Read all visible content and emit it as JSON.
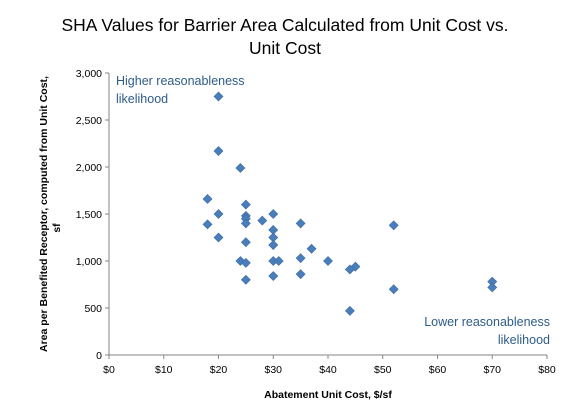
{
  "chart_data": {
    "type": "scatter",
    "title_lines": [
      "SHA Values for Barrier Area Calculated from Unit Cost vs.",
      "Unit Cost"
    ],
    "xlabel": "Abatement Unit Cost, $/sf",
    "ylabel_lines": [
      "Area per Benefited Receptor, computed from Unit Cost,",
      "sf"
    ],
    "xlim": [
      0,
      80
    ],
    "ylim": [
      0,
      3000
    ],
    "x_tick_labels": [
      "$0",
      "$10",
      "$20",
      "$30",
      "$40",
      "$50",
      "$60",
      "$70",
      "$80"
    ],
    "y_tick_labels": [
      "0",
      "500",
      "1,000",
      "1,500",
      "2,000",
      "2,500",
      "3,000"
    ],
    "grid": false,
    "marker": "diamond",
    "marker_color": "#4a7ebb",
    "annotations": {
      "high": [
        "Higher reasonableness",
        "likelihood"
      ],
      "low": [
        "Lower reasonableness",
        "likelihood"
      ]
    },
    "points": [
      {
        "x": 20,
        "y": 2750
      },
      {
        "x": 20,
        "y": 2170
      },
      {
        "x": 24,
        "y": 1990
      },
      {
        "x": 18,
        "y": 1660
      },
      {
        "x": 25,
        "y": 1600
      },
      {
        "x": 20,
        "y": 1500
      },
      {
        "x": 25,
        "y": 1480
      },
      {
        "x": 30,
        "y": 1500
      },
      {
        "x": 25,
        "y": 1450
      },
      {
        "x": 28,
        "y": 1430
      },
      {
        "x": 25,
        "y": 1400
      },
      {
        "x": 35,
        "y": 1400
      },
      {
        "x": 18,
        "y": 1390
      },
      {
        "x": 52,
        "y": 1380
      },
      {
        "x": 30,
        "y": 1330
      },
      {
        "x": 20,
        "y": 1250
      },
      {
        "x": 30,
        "y": 1250
      },
      {
        "x": 25,
        "y": 1200
      },
      {
        "x": 30,
        "y": 1170
      },
      {
        "x": 37,
        "y": 1130
      },
      {
        "x": 35,
        "y": 1030
      },
      {
        "x": 24,
        "y": 1000
      },
      {
        "x": 25,
        "y": 980
      },
      {
        "x": 30,
        "y": 1000
      },
      {
        "x": 31,
        "y": 1000
      },
      {
        "x": 40,
        "y": 1000
      },
      {
        "x": 45,
        "y": 940
      },
      {
        "x": 44,
        "y": 910
      },
      {
        "x": 35,
        "y": 860
      },
      {
        "x": 25,
        "y": 800
      },
      {
        "x": 30,
        "y": 840
      },
      {
        "x": 70,
        "y": 780
      },
      {
        "x": 70,
        "y": 720
      },
      {
        "x": 52,
        "y": 700
      },
      {
        "x": 44,
        "y": 470
      }
    ]
  }
}
